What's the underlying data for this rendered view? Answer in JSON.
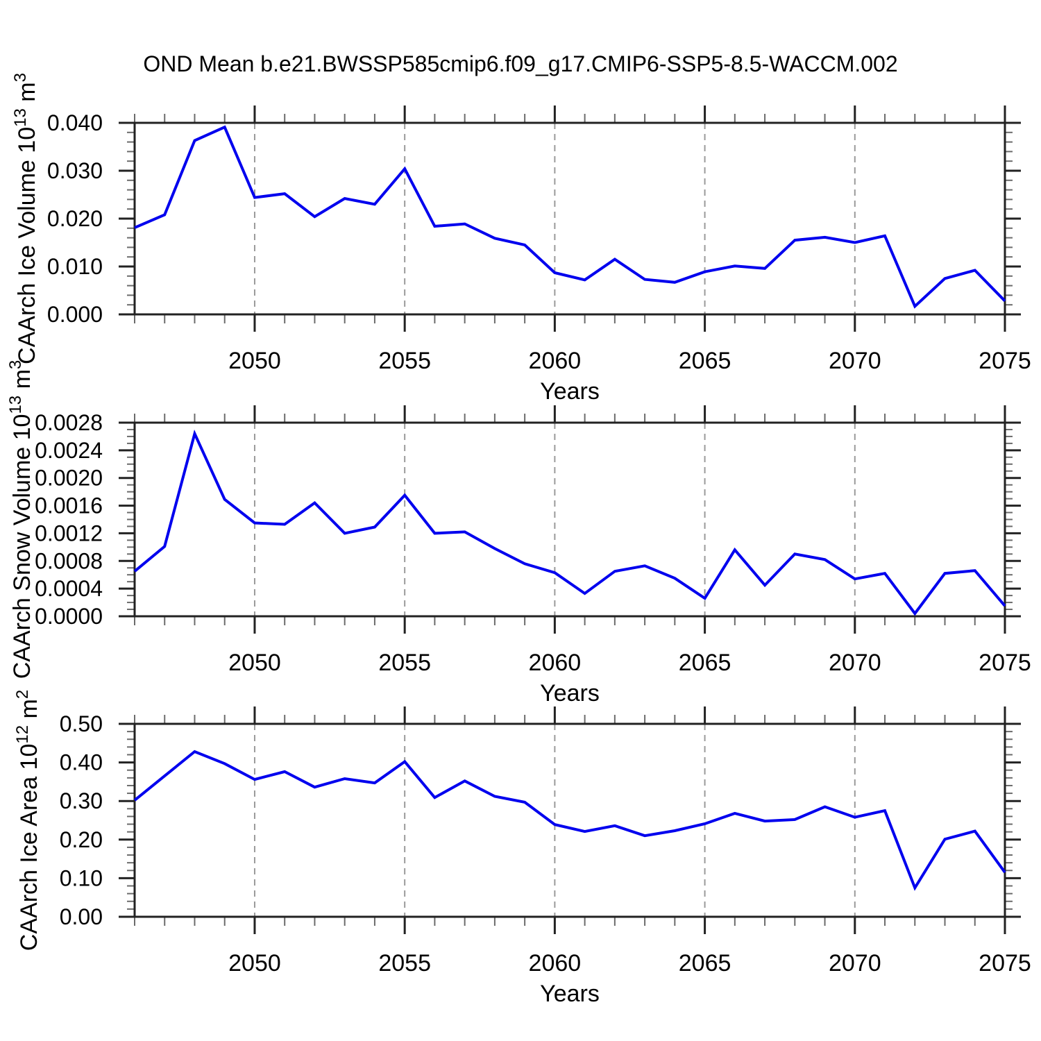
{
  "title": "OND Mean b.e21.BWSSP585cmip6.f09_g17.CMIP6-SSP5-8.5-WACCM.002",
  "colors": {
    "line": "#0000ee",
    "grid": "#9a9a9a",
    "frame": "#222222",
    "minor_tick": "#6b6b6b",
    "text": "#000000"
  },
  "chart_data": [
    {
      "type": "line",
      "name": "caarch-ice-volume",
      "ylabel": "CAArch Ice Volume 10^13 m^3",
      "ylabel_segments": [
        {
          "text": "CAArch Ice Volume 10",
          "sup": false
        },
        {
          "text": "13",
          "sup": true
        },
        {
          "text": " m",
          "sup": false
        },
        {
          "text": "3",
          "sup": true
        }
      ],
      "xlabel": "Years",
      "x": [
        2046,
        2047,
        2048,
        2049,
        2050,
        2051,
        2052,
        2053,
        2054,
        2055,
        2056,
        2057,
        2058,
        2059,
        2060,
        2061,
        2062,
        2063,
        2064,
        2065,
        2066,
        2067,
        2068,
        2069,
        2070,
        2071,
        2072,
        2073,
        2074,
        2075
      ],
      "values": [
        0.0181,
        0.0208,
        0.0363,
        0.0391,
        0.0244,
        0.0252,
        0.0204,
        0.0242,
        0.023,
        0.0304,
        0.0184,
        0.0189,
        0.0159,
        0.0145,
        0.0087,
        0.0072,
        0.0115,
        0.0073,
        0.0067,
        0.0089,
        0.0101,
        0.0096,
        0.0155,
        0.0161,
        0.015,
        0.0164,
        0.0017,
        0.0075,
        0.0092,
        0.0028
      ],
      "ylim": [
        0,
        0.04
      ],
      "ytick_values": [
        0.0,
        0.01,
        0.02,
        0.03,
        0.04
      ],
      "ytick_labels": [
        "0.000",
        "0.010",
        "0.020",
        "0.030",
        "0.040"
      ],
      "ytick_minor_step": 0.002,
      "xlim": [
        2046,
        2075
      ],
      "xtick_values": [
        2050,
        2055,
        2060,
        2065,
        2070,
        2075
      ],
      "xtick_labels": [
        "2050",
        "2055",
        "2060",
        "2065",
        "2070",
        "2075"
      ],
      "xtick_minor_step": 1,
      "grid_x": [
        2050,
        2055,
        2060,
        2065,
        2070
      ],
      "grid_on": true,
      "legend": "none"
    },
    {
      "type": "line",
      "name": "caarch-snow-volume",
      "ylabel": "CAArch Snow Volume 10^13 m^3",
      "ylabel_segments": [
        {
          "text": "CAArch Snow Volume 10",
          "sup": false
        },
        {
          "text": "13",
          "sup": true
        },
        {
          "text": " m",
          "sup": false
        },
        {
          "text": "3",
          "sup": true
        }
      ],
      "xlabel": "Years",
      "x": [
        2046,
        2047,
        2048,
        2049,
        2050,
        2051,
        2052,
        2053,
        2054,
        2055,
        2056,
        2057,
        2058,
        2059,
        2060,
        2061,
        2062,
        2063,
        2064,
        2065,
        2066,
        2067,
        2068,
        2069,
        2070,
        2071,
        2072,
        2073,
        2074,
        2075
      ],
      "values": [
        0.00065,
        0.00101,
        0.00264,
        0.00169,
        0.00135,
        0.00133,
        0.00164,
        0.0012,
        0.00129,
        0.00175,
        0.0012,
        0.00122,
        0.00098,
        0.00076,
        0.00063,
        0.00033,
        0.00065,
        0.00073,
        0.00055,
        0.00026,
        0.00096,
        0.00045,
        0.0009,
        0.00082,
        0.00054,
        0.00062,
        4e-05,
        0.00062,
        0.00066,
        0.00015
      ],
      "ylim": [
        0,
        0.0028
      ],
      "ytick_values": [
        0.0,
        0.0004,
        0.0008,
        0.0012,
        0.0016,
        0.002,
        0.0024,
        0.0028
      ],
      "ytick_labels": [
        "0.0000",
        "0.0004",
        "0.0008",
        "0.0012",
        "0.0016",
        "0.0020",
        "0.0024",
        "0.0028"
      ],
      "ytick_minor_step": 0.0001,
      "xlim": [
        2046,
        2075
      ],
      "xtick_values": [
        2050,
        2055,
        2060,
        2065,
        2070,
        2075
      ],
      "xtick_labels": [
        "2050",
        "2055",
        "2060",
        "2065",
        "2070",
        "2075"
      ],
      "xtick_minor_step": 1,
      "grid_x": [
        2050,
        2055,
        2060,
        2065,
        2070
      ],
      "grid_on": true,
      "legend": "none"
    },
    {
      "type": "line",
      "name": "caarch-ice-area",
      "ylabel": "CAArch Ice Area 10^12 m^2",
      "ylabel_segments": [
        {
          "text": "CAArch Ice Area 10",
          "sup": false
        },
        {
          "text": "12",
          "sup": true
        },
        {
          "text": " m",
          "sup": false
        },
        {
          "text": "2",
          "sup": true
        }
      ],
      "xlabel": "Years",
      "x": [
        2046,
        2047,
        2048,
        2049,
        2050,
        2051,
        2052,
        2053,
        2054,
        2055,
        2056,
        2057,
        2058,
        2059,
        2060,
        2061,
        2062,
        2063,
        2064,
        2065,
        2066,
        2067,
        2068,
        2069,
        2070,
        2071,
        2072,
        2073,
        2074,
        2075
      ],
      "values": [
        0.302,
        0.365,
        0.428,
        0.397,
        0.356,
        0.376,
        0.336,
        0.358,
        0.347,
        0.402,
        0.309,
        0.352,
        0.312,
        0.297,
        0.239,
        0.221,
        0.236,
        0.21,
        0.223,
        0.241,
        0.268,
        0.248,
        0.252,
        0.285,
        0.258,
        0.275,
        0.075,
        0.201,
        0.222,
        0.115
      ],
      "ylim": [
        0,
        0.5
      ],
      "ytick_values": [
        0.0,
        0.1,
        0.2,
        0.3,
        0.4,
        0.5
      ],
      "ytick_labels": [
        "0.00",
        "0.10",
        "0.20",
        "0.30",
        "0.40",
        "0.50"
      ],
      "ytick_minor_step": 0.02,
      "xlim": [
        2046,
        2075
      ],
      "xtick_values": [
        2050,
        2055,
        2060,
        2065,
        2070,
        2075
      ],
      "xtick_labels": [
        "2050",
        "2055",
        "2060",
        "2065",
        "2070",
        "2075"
      ],
      "xtick_minor_step": 1,
      "grid_x": [
        2050,
        2055,
        2060,
        2065,
        2070
      ],
      "grid_on": true,
      "legend": "none"
    }
  ]
}
